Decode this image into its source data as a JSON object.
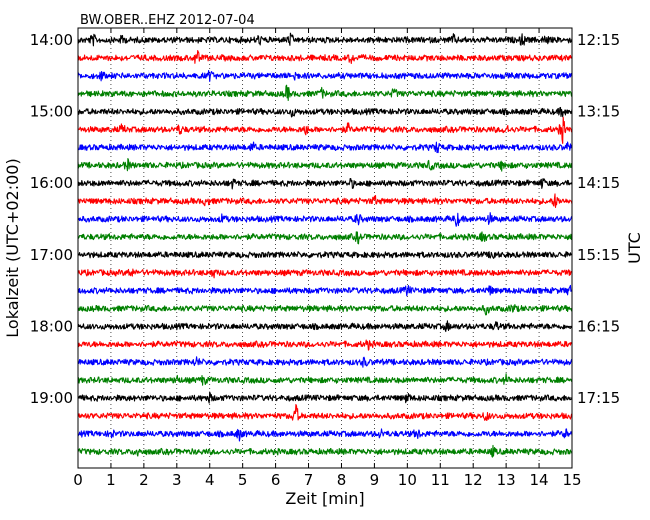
{
  "chart_data": {
    "type": "line",
    "title": "BW.OBER..EHZ 2012-07-04",
    "xlabel": "Zeit  [min]",
    "ylabel_left": "Lokalzeit (UTC+02:00)",
    "ylabel_right": "UTC",
    "xlim": [
      0,
      15
    ],
    "x_ticks": [
      "0",
      "1",
      "2",
      "3",
      "4",
      "5",
      "6",
      "7",
      "8",
      "9",
      "10",
      "11",
      "12",
      "13",
      "14",
      "15"
    ],
    "y_ticks_left": [
      "14:00",
      "15:00",
      "16:00",
      "17:00",
      "18:00",
      "19:00"
    ],
    "y_ticks_right": [
      "12:15",
      "13:15",
      "14:15",
      "15:15",
      "16:15",
      "17:15"
    ],
    "grid": "vertical dotted",
    "trace_interval_min": 15,
    "trace_colors": [
      "#000000",
      "#ff0000",
      "#0000ff",
      "#008000"
    ],
    "series": [
      {
        "start": "14:00",
        "color": "#000000",
        "events": [
          [
            0.45,
            1.0
          ],
          [
            1.35,
            0.8
          ],
          [
            5.5,
            0.8
          ],
          [
            6.45,
            1.0
          ],
          [
            11.4,
            0.8
          ],
          [
            13.5,
            1.0
          ],
          [
            14.2,
            0.8
          ]
        ]
      },
      {
        "start": "14:15",
        "color": "#ff0000",
        "events": [
          [
            3.6,
            1.6
          ],
          [
            8.3,
            0.8
          ]
        ]
      },
      {
        "start": "14:30",
        "color": "#0000ff",
        "events": [
          [
            0.7,
            0.8
          ],
          [
            4.0,
            0.8
          ],
          [
            6.6,
            0.8
          ]
        ]
      },
      {
        "start": "14:45",
        "color": "#008000",
        "events": [
          [
            6.35,
            1.5
          ],
          [
            7.4,
            0.8
          ],
          [
            9.6,
            0.8
          ]
        ]
      },
      {
        "start": "15:00",
        "color": "#000000",
        "events": [
          [
            6.5,
            0.8
          ],
          [
            14.7,
            0.9
          ]
        ]
      },
      {
        "start": "15:15",
        "color": "#ff0000",
        "events": [
          [
            1.35,
            0.8
          ],
          [
            3.1,
            0.8
          ],
          [
            6.9,
            0.9
          ],
          [
            8.2,
            0.9
          ],
          [
            13.0,
            0.9
          ],
          [
            14.7,
            2.8
          ]
        ]
      },
      {
        "start": "15:30",
        "color": "#0000ff",
        "events": [
          [
            5.3,
            0.8
          ],
          [
            10.9,
            1.0
          ],
          [
            14.9,
            0.9
          ]
        ]
      },
      {
        "start": "15:45",
        "color": "#008000",
        "events": [
          [
            1.5,
            1.0
          ],
          [
            10.7,
            0.9
          ],
          [
            12.9,
            1.0
          ]
        ]
      },
      {
        "start": "16:00",
        "color": "#000000",
        "events": [
          [
            4.7,
            0.8
          ],
          [
            8.3,
            0.8
          ],
          [
            14.1,
            0.8
          ]
        ]
      },
      {
        "start": "16:15",
        "color": "#ff0000",
        "events": [
          [
            3.9,
            0.8
          ],
          [
            9.0,
            0.8
          ],
          [
            14.5,
            1.4
          ]
        ]
      },
      {
        "start": "16:30",
        "color": "#0000ff",
        "events": [
          [
            4.4,
            0.8
          ],
          [
            8.5,
            1.0
          ],
          [
            11.5,
            1.4
          ],
          [
            12.5,
            0.9
          ]
        ]
      },
      {
        "start": "16:45",
        "color": "#008000",
        "events": [
          [
            8.5,
            1.0
          ],
          [
            12.3,
            0.8
          ]
        ]
      },
      {
        "start": "17:00",
        "color": "#000000",
        "events": [
          [
            12.6,
            1.0
          ]
        ]
      },
      {
        "start": "17:15",
        "color": "#ff0000",
        "events": [
          [
            1.6,
            0.8
          ],
          [
            4.1,
            0.8
          ]
        ]
      },
      {
        "start": "17:30",
        "color": "#0000ff",
        "events": [
          [
            10.0,
            1.0
          ],
          [
            12.5,
            0.8
          ],
          [
            14.9,
            0.8
          ]
        ]
      },
      {
        "start": "17:45",
        "color": "#008000",
        "events": [
          [
            12.4,
            0.9
          ],
          [
            13.2,
            0.8
          ]
        ]
      },
      {
        "start": "18:00",
        "color": "#000000",
        "events": [
          [
            11.2,
            0.8
          ],
          [
            12.7,
            0.8
          ]
        ]
      },
      {
        "start": "18:15",
        "color": "#ff0000",
        "events": [
          [
            8.8,
            0.8
          ]
        ]
      },
      {
        "start": "18:30",
        "color": "#0000ff",
        "events": [
          [
            3.6,
            0.8
          ],
          [
            8.7,
            0.8
          ]
        ]
      },
      {
        "start": "18:45",
        "color": "#008000",
        "events": [
          [
            3.0,
            0.8
          ],
          [
            3.8,
            0.8
          ],
          [
            13.0,
            0.8
          ]
        ]
      },
      {
        "start": "19:00",
        "color": "#000000",
        "events": [
          [
            4.0,
            0.8
          ],
          [
            10.0,
            0.9
          ]
        ]
      },
      {
        "start": "19:15",
        "color": "#ff0000",
        "events": [
          [
            6.6,
            2.6
          ],
          [
            12.4,
            0.8
          ]
        ]
      },
      {
        "start": "19:30",
        "color": "#0000ff",
        "events": [
          [
            1.0,
            0.8
          ],
          [
            4.9,
            1.0
          ],
          [
            9.2,
            0.8
          ],
          [
            10.3,
            0.9
          ],
          [
            14.8,
            0.8
          ]
        ]
      },
      {
        "start": "19:45",
        "color": "#008000",
        "events": [
          [
            1.8,
            0.8
          ],
          [
            12.6,
            0.8
          ]
        ]
      }
    ]
  }
}
